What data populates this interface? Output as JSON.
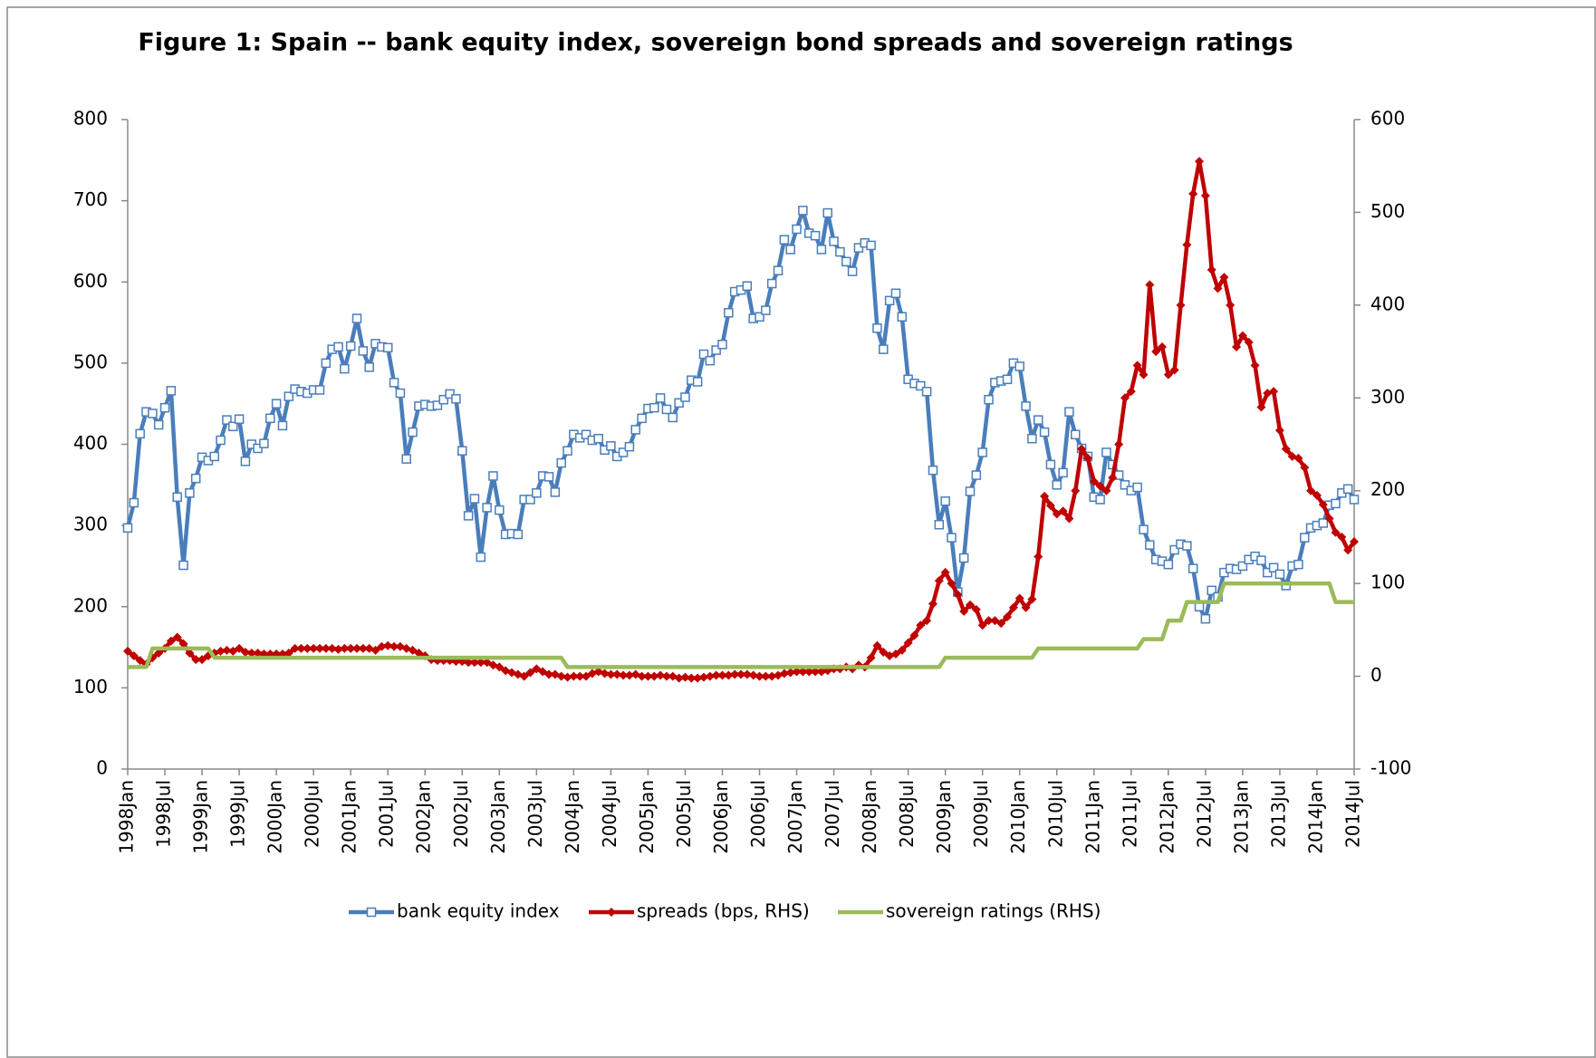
{
  "chart_data": {
    "type": "line",
    "title": "Figure 1: Spain -- bank equity index, sovereign bond spreads and sovereign ratings",
    "categories": [
      "1998Jan",
      null,
      null,
      null,
      null,
      null,
      "1998Jul",
      null,
      null,
      null,
      null,
      null,
      "1999Jan",
      null,
      null,
      null,
      null,
      null,
      "1999Jul",
      null,
      null,
      null,
      null,
      null,
      "2000Jan",
      null,
      null,
      null,
      null,
      null,
      "2000Jul",
      null,
      null,
      null,
      null,
      null,
      "2001Jan",
      null,
      null,
      null,
      null,
      null,
      "2001Jul",
      null,
      null,
      null,
      null,
      null,
      "2002Jan",
      null,
      null,
      null,
      null,
      null,
      "2002Jul",
      null,
      null,
      null,
      null,
      null,
      "2003Jan",
      null,
      null,
      null,
      null,
      null,
      "2003Jul",
      null,
      null,
      null,
      null,
      null,
      "2004Jan",
      null,
      null,
      null,
      null,
      null,
      "2004Jul",
      null,
      null,
      null,
      null,
      null,
      "2005Jan",
      null,
      null,
      null,
      null,
      null,
      "2005Jul",
      null,
      null,
      null,
      null,
      null,
      "2006Jan",
      null,
      null,
      null,
      null,
      null,
      "2006Jul",
      null,
      null,
      null,
      null,
      null,
      "2007Jan",
      null,
      null,
      null,
      null,
      null,
      "2007Jul",
      null,
      null,
      null,
      null,
      null,
      "2008Jan",
      null,
      null,
      null,
      null,
      null,
      "2008Jul",
      null,
      null,
      null,
      null,
      null,
      "2009Jan",
      null,
      null,
      null,
      null,
      null,
      "2009Jul",
      null,
      null,
      null,
      null,
      null,
      "2010Jan",
      null,
      null,
      null,
      null,
      null,
      "2010Jul",
      null,
      null,
      null,
      null,
      null,
      "2011Jan",
      null,
      null,
      null,
      null,
      null,
      "2011Jul",
      null,
      null,
      null,
      null,
      null,
      "2012Jan",
      null,
      null,
      null,
      null,
      null,
      "2012Jul",
      null,
      null,
      null,
      null,
      null,
      "2013Jan",
      null,
      null,
      null,
      null,
      null,
      "2013Jul",
      null,
      null,
      null,
      null,
      null,
      "2014Jan",
      null,
      null,
      null,
      null,
      null,
      "2014Jul"
    ],
    "series": [
      {
        "name": "bank equity index",
        "color": "#4a7ebb",
        "marker": "square",
        "values": [
          297,
          328,
          413,
          440,
          438,
          424,
          445,
          466,
          335,
          251,
          340,
          358,
          384,
          380,
          385,
          405,
          430,
          422,
          431,
          379,
          400,
          395,
          401,
          432,
          450,
          423,
          459,
          468,
          465,
          463,
          467,
          467,
          500,
          517,
          520,
          493,
          521,
          555,
          515,
          495,
          524,
          520,
          519,
          476,
          463,
          382,
          415,
          447,
          449,
          447,
          448,
          455,
          462,
          456,
          392,
          312,
          333,
          261,
          322,
          361,
          319,
          289,
          290,
          289,
          332,
          332,
          340,
          361,
          360,
          341,
          377,
          392,
          412,
          408,
          412,
          405,
          407,
          393,
          398,
          385,
          390,
          397,
          418,
          432,
          444,
          445,
          457,
          443,
          433,
          451,
          458,
          479,
          477,
          511,
          503,
          516,
          523,
          562,
          588,
          590,
          595,
          555,
          557,
          565,
          598,
          614,
          652,
          640,
          665,
          688,
          660,
          657,
          640,
          685,
          650,
          637,
          625,
          613,
          642,
          648,
          645,
          543,
          517,
          577,
          586,
          557,
          480,
          475,
          472,
          465,
          368,
          301,
          330,
          285,
          218,
          260,
          342,
          362,
          390,
          455,
          476,
          478,
          480,
          500,
          496,
          447,
          407,
          430,
          415,
          375,
          350,
          365,
          440,
          412,
          395,
          385,
          335,
          332,
          390,
          375,
          362,
          350,
          343,
          347,
          295,
          276,
          258,
          256,
          252,
          270,
          277,
          275,
          247,
          200,
          185,
          220,
          212,
          242,
          247,
          246,
          250,
          258,
          262,
          257,
          242,
          248,
          240,
          226,
          250,
          252,
          285,
          297,
          300,
          303,
          325,
          327,
          340,
          345,
          332
        ]
      },
      {
        "name": "spreads (bps, RHS)",
        "color": "#c00000",
        "marker": "diamond",
        "axis": "y2",
        "values": [
          27,
          22,
          17,
          13,
          20,
          25,
          30,
          38,
          42,
          35,
          25,
          18,
          18,
          22,
          25,
          27,
          28,
          27,
          30,
          26,
          25,
          25,
          24,
          24,
          24,
          24,
          25,
          30,
          30,
          30,
          30,
          30,
          30,
          30,
          29,
          30,
          30,
          30,
          30,
          30,
          28,
          32,
          33,
          32,
          32,
          30,
          28,
          25,
          22,
          18,
          17,
          17,
          17,
          16,
          16,
          15,
          15,
          15,
          15,
          12,
          10,
          6,
          4,
          2,
          0,
          4,
          8,
          5,
          2,
          2,
          0,
          -1,
          0,
          0,
          0,
          3,
          5,
          3,
          2,
          2,
          1,
          1,
          2,
          0,
          0,
          0,
          1,
          0,
          0,
          -2,
          -1,
          -2,
          -2,
          -1,
          0,
          1,
          1,
          1,
          2,
          2,
          2,
          1,
          0,
          0,
          0,
          1,
          3,
          4,
          5,
          5,
          5,
          5,
          5,
          6,
          8,
          8,
          10,
          8,
          12,
          10,
          20,
          33,
          26,
          22,
          24,
          28,
          36,
          44,
          55,
          60,
          78,
          103,
          112,
          100,
          88,
          70,
          77,
          72,
          55,
          60,
          60,
          57,
          64,
          74,
          84,
          74,
          83,
          129,
          194,
          184,
          175,
          178,
          170,
          200,
          245,
          235,
          210,
          205,
          200,
          214,
          250,
          300,
          307,
          335,
          325,
          422,
          350,
          355,
          325,
          330,
          400,
          465,
          520,
          555,
          518,
          438,
          418,
          430,
          400,
          355,
          367,
          360,
          335,
          290,
          305,
          307,
          265,
          245,
          237,
          235,
          225,
          200,
          195,
          185,
          170,
          155,
          150,
          136,
          145
        ]
      },
      {
        "name": "sovereign ratings (RHS)",
        "color": "#9bbb59",
        "marker": "none",
        "axis": "y2",
        "values": [
          10,
          10,
          10,
          10,
          30,
          30,
          30,
          30,
          30,
          30,
          30,
          30,
          30,
          30,
          20,
          20,
          20,
          20,
          20,
          20,
          20,
          20,
          20,
          20,
          20,
          20,
          20,
          20,
          20,
          20,
          20,
          20,
          20,
          20,
          20,
          20,
          20,
          20,
          20,
          20,
          20,
          20,
          20,
          20,
          20,
          20,
          20,
          20,
          20,
          20,
          20,
          20,
          20,
          20,
          20,
          20,
          20,
          20,
          20,
          20,
          20,
          20,
          20,
          20,
          20,
          20,
          20,
          20,
          20,
          20,
          20,
          10,
          10,
          10,
          10,
          10,
          10,
          10,
          10,
          10,
          10,
          10,
          10,
          10,
          10,
          10,
          10,
          10,
          10,
          10,
          10,
          10,
          10,
          10,
          10,
          10,
          10,
          10,
          10,
          10,
          10,
          10,
          10,
          10,
          10,
          10,
          10,
          10,
          10,
          10,
          10,
          10,
          10,
          10,
          10,
          10,
          10,
          10,
          10,
          10,
          10,
          10,
          10,
          10,
          10,
          10,
          10,
          10,
          10,
          10,
          10,
          10,
          20,
          20,
          20,
          20,
          20,
          20,
          20,
          20,
          20,
          20,
          20,
          20,
          20,
          20,
          20,
          30,
          30,
          30,
          30,
          30,
          30,
          30,
          30,
          30,
          30,
          30,
          30,
          30,
          30,
          30,
          30,
          30,
          40,
          40,
          40,
          40,
          60,
          60,
          60,
          80,
          80,
          80,
          80,
          80,
          80,
          100,
          100,
          100,
          100,
          100,
          100,
          100,
          100,
          100,
          100,
          100,
          100,
          100,
          100,
          100,
          100,
          100,
          100,
          80,
          80,
          80,
          80
        ]
      }
    ],
    "ylim": [
      0,
      800
    ],
    "yticks": [
      0,
      100,
      200,
      300,
      400,
      500,
      600,
      700,
      800
    ],
    "y2lim": [
      -100,
      600
    ],
    "y2ticks": [
      -100,
      0,
      100,
      200,
      300,
      400,
      500,
      600
    ],
    "legend": "bottom"
  }
}
